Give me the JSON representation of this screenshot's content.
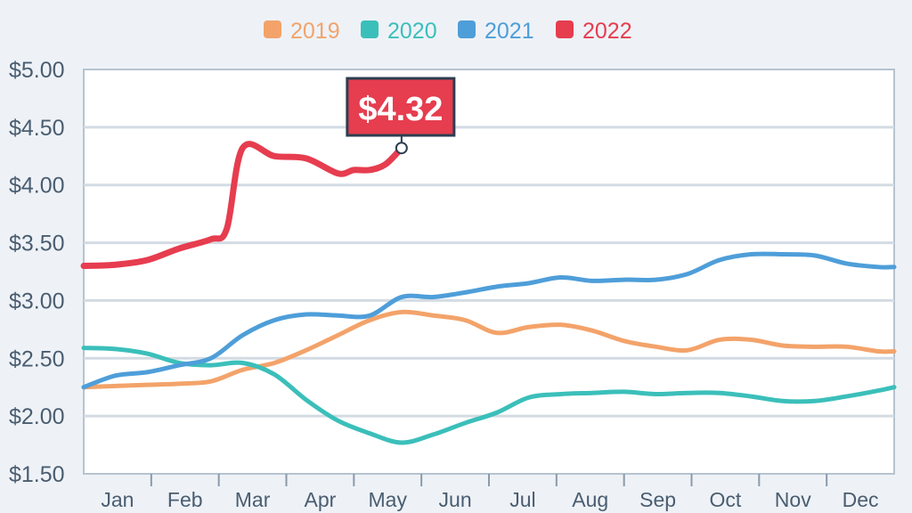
{
  "chart_data": {
    "type": "line",
    "title": "",
    "xlabel": "",
    "ylabel": "",
    "categories": [
      "Jan",
      "Feb",
      "Mar",
      "Apr",
      "May",
      "Jun",
      "Jul",
      "Aug",
      "Sep",
      "Oct",
      "Nov",
      "Dec"
    ],
    "yticks": [
      "$1.50",
      "$2.00",
      "$2.50",
      "$3.00",
      "$3.50",
      "$4.00",
      "$4.50",
      "$5.00"
    ],
    "ylim": [
      1.5,
      5.0
    ],
    "xlim": [
      1,
      52
    ],
    "x_unit": "week of year",
    "legend_position": "top",
    "grid": true,
    "series": [
      {
        "name": "2019",
        "color": "#f3a36a",
        "x": [
          1,
          3,
          5,
          7,
          9,
          11,
          13,
          15,
          17,
          19,
          21,
          23,
          25,
          27,
          29,
          31,
          33,
          35,
          37,
          39,
          41,
          43,
          45,
          47,
          49,
          51,
          52
        ],
        "y": [
          2.25,
          2.26,
          2.27,
          2.28,
          2.3,
          2.4,
          2.46,
          2.57,
          2.7,
          2.83,
          2.9,
          2.87,
          2.83,
          2.72,
          2.77,
          2.79,
          2.74,
          2.65,
          2.6,
          2.57,
          2.66,
          2.66,
          2.61,
          2.6,
          2.6,
          2.56,
          2.56
        ]
      },
      {
        "name": "2020",
        "color": "#3bbfba",
        "x": [
          1,
          3,
          5,
          7,
          9,
          11,
          13,
          15,
          17,
          19,
          21,
          23,
          25,
          27,
          29,
          31,
          33,
          35,
          37,
          39,
          41,
          43,
          45,
          47,
          49,
          51,
          52
        ],
        "y": [
          2.59,
          2.58,
          2.54,
          2.46,
          2.44,
          2.46,
          2.36,
          2.14,
          1.96,
          1.85,
          1.77,
          1.84,
          1.94,
          2.03,
          2.16,
          2.19,
          2.2,
          2.21,
          2.19,
          2.2,
          2.2,
          2.17,
          2.13,
          2.13,
          2.17,
          2.22,
          2.25
        ]
      },
      {
        "name": "2021",
        "color": "#4e9ed9",
        "x": [
          1,
          3,
          5,
          7,
          9,
          11,
          13,
          15,
          17,
          19,
          21,
          23,
          25,
          27,
          29,
          31,
          33,
          35,
          37,
          39,
          41,
          43,
          45,
          47,
          49,
          51,
          52
        ],
        "y": [
          2.25,
          2.35,
          2.38,
          2.44,
          2.5,
          2.7,
          2.83,
          2.88,
          2.87,
          2.87,
          3.03,
          3.03,
          3.07,
          3.12,
          3.15,
          3.2,
          3.17,
          3.18,
          3.18,
          3.23,
          3.35,
          3.4,
          3.4,
          3.39,
          3.32,
          3.29,
          3.29
        ]
      },
      {
        "name": "2022",
        "color": "#e63d4f",
        "x": [
          1,
          3,
          5,
          7,
          9,
          10,
          11,
          13,
          15,
          17,
          18,
          19,
          20,
          21
        ],
        "y": [
          3.3,
          3.31,
          3.35,
          3.45,
          3.53,
          3.62,
          4.32,
          4.25,
          4.23,
          4.1,
          4.13,
          4.13,
          4.18,
          4.32
        ]
      }
    ],
    "annotation": {
      "text": "$4.32",
      "series": "2022",
      "x": 21,
      "y": 4.32
    }
  }
}
